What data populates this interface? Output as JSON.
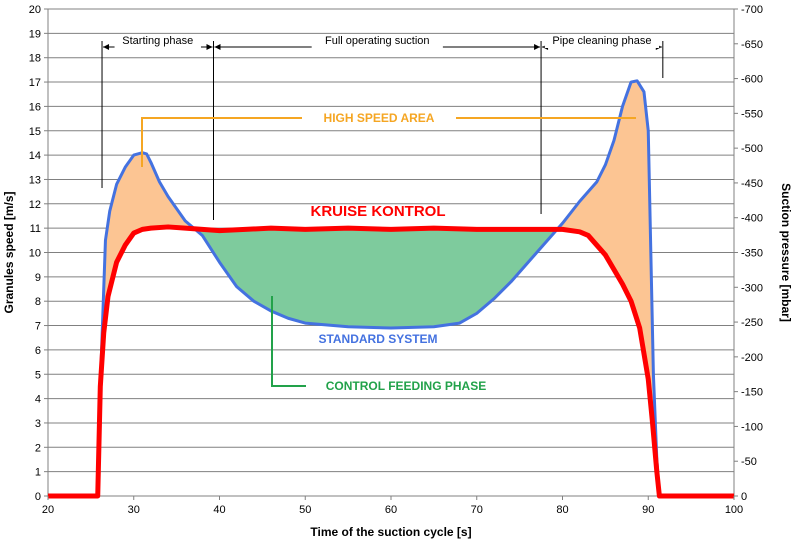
{
  "chart_data": {
    "type": "area",
    "xlabel": "Time of the suction cycle [s]",
    "ylabel": "Granules speed [m/s]",
    "y2label": "Suction pressure [mbar]",
    "xlim": [
      20,
      100
    ],
    "ylim": [
      0,
      20
    ],
    "y2lim": [
      0,
      -700
    ],
    "xticks": [
      "20",
      "30",
      "40",
      "50",
      "60",
      "70",
      "80",
      "90",
      "100"
    ],
    "yticks": [
      "0",
      "1",
      "2",
      "3",
      "4",
      "5",
      "6",
      "7",
      "8",
      "9",
      "10",
      "11",
      "12",
      "13",
      "14",
      "15",
      "16",
      "17",
      "18",
      "19",
      "20"
    ],
    "y2ticks": [
      "0",
      "-50",
      "-100",
      "-150",
      "-200",
      "-250",
      "-300",
      "-350",
      "-400",
      "-450",
      "-500",
      "-550",
      "-600",
      "-650",
      "-700"
    ],
    "grid": true,
    "series": [
      {
        "name": "KRUISE KONTROL",
        "color": "#ff0000",
        "x": [
          20,
          25.8,
          26.1,
          26.5,
          27,
          28,
          29,
          30,
          31,
          32,
          34,
          36,
          38,
          40,
          43,
          46,
          50,
          55,
          60,
          65,
          70,
          75,
          78,
          80,
          82,
          83,
          84,
          85,
          86,
          87,
          88,
          89,
          90,
          90.5,
          91,
          91.3,
          100
        ],
        "y": [
          0,
          0,
          4.5,
          6.7,
          8.2,
          9.6,
          10.3,
          10.8,
          10.95,
          11.0,
          11.05,
          11.0,
          10.95,
          10.9,
          10.95,
          11.0,
          10.95,
          11.0,
          10.95,
          11.0,
          10.95,
          10.95,
          10.95,
          10.95,
          10.85,
          10.7,
          10.3,
          9.9,
          9.3,
          8.7,
          8.0,
          6.9,
          4.8,
          3.0,
          1.0,
          0,
          0
        ]
      },
      {
        "name": "STANDARD SYSTEM",
        "color": "#4472e0",
        "x": [
          20,
          25.8,
          26,
          26.3,
          26.7,
          27.2,
          28,
          29,
          30,
          31,
          31.5,
          32,
          33,
          34,
          36,
          38,
          40,
          42,
          44,
          46,
          48,
          50,
          55,
          60,
          65,
          68,
          70,
          72,
          74,
          76,
          78,
          80,
          82,
          84,
          85,
          86,
          87,
          88,
          88.7,
          89.5,
          90,
          90.3,
          90.6,
          91,
          91.3,
          100
        ],
        "y": [
          0,
          0,
          3.5,
          6.5,
          10.5,
          11.7,
          12.8,
          13.5,
          14.0,
          14.1,
          14.05,
          13.7,
          12.9,
          12.3,
          11.3,
          10.7,
          9.6,
          8.6,
          8.0,
          7.6,
          7.3,
          7.1,
          6.95,
          6.9,
          6.95,
          7.1,
          7.5,
          8.1,
          8.8,
          9.6,
          10.4,
          11.2,
          12.1,
          12.9,
          13.6,
          14.6,
          16.0,
          17.0,
          17.05,
          16.6,
          15.0,
          10.0,
          5.0,
          1.5,
          0,
          0
        ]
      }
    ],
    "phases": [
      {
        "label": "Starting phase",
        "x_start": 26.3,
        "x_end": 39.3
      },
      {
        "label": "Full operating suction",
        "x_start": 39.3,
        "x_end": 77.5
      },
      {
        "label": "Pipe cleaning phase",
        "x_start": 77.5,
        "x_end": 91.7
      }
    ],
    "fills": {
      "high_speed_color": "#fcc593",
      "control_feeding_color": "#7ecb9d"
    },
    "annotations": {
      "high_speed": {
        "text": "HIGH SPEED AREA",
        "color": "#f5a623"
      },
      "kruise": {
        "text": "KRUISE KONTROL",
        "color": "#ff0000"
      },
      "standard": {
        "text": "STANDARD SYSTEM",
        "color": "#4472e0"
      },
      "control_feeding": {
        "text": "CONTROL FEEDING PHASE",
        "color": "#22a24a"
      }
    }
  }
}
